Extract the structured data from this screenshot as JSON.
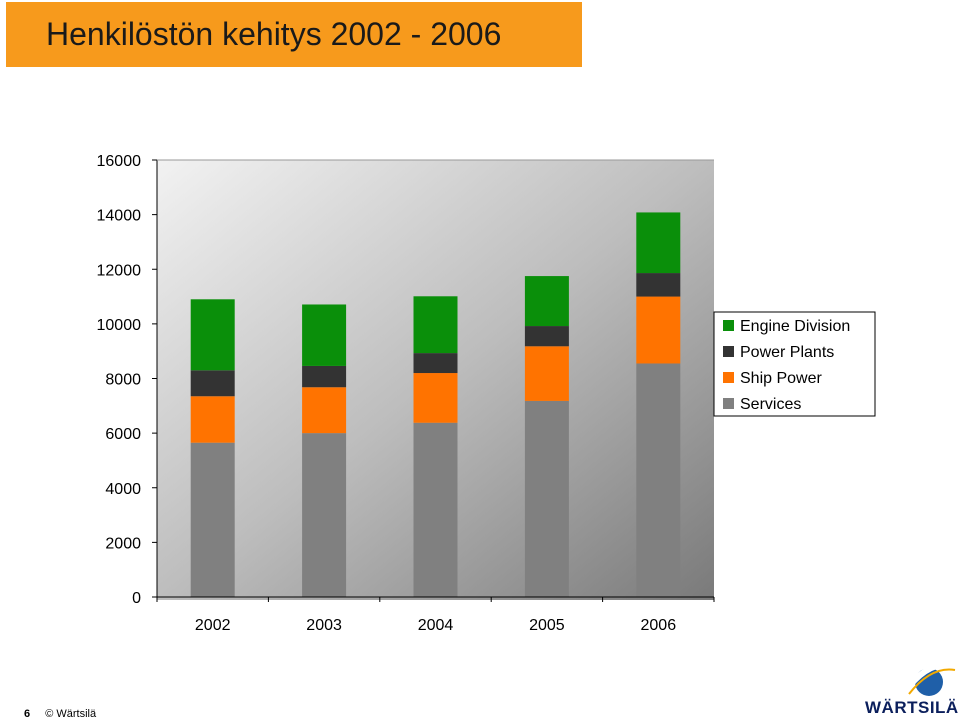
{
  "slide": {
    "title": "Henkilöstön kehitys 2002 - 2006",
    "page_number": "6",
    "copyright": "© Wärtsilä",
    "logo_text": "WÄRTSILÄ",
    "accent_color": "#f79a1c"
  },
  "chart_data": {
    "type": "bar",
    "stacked": true,
    "categories": [
      "2002",
      "2003",
      "2004",
      "2005",
      "2006"
    ],
    "ylim": [
      0,
      16000
    ],
    "yticks": [
      "0",
      "2000",
      "4000",
      "6000",
      "8000",
      "10000",
      "12000",
      "14000",
      "16000"
    ],
    "grid": false,
    "legend_position": "right",
    "series": [
      {
        "name": "Services",
        "color": "#808080",
        "values": [
          5650,
          6000,
          6380,
          7180,
          8550
        ]
      },
      {
        "name": "Ship Power",
        "color": "#ff7300",
        "values": [
          1700,
          1680,
          1820,
          2000,
          2450
        ]
      },
      {
        "name": "Power Plants",
        "color": "#333333",
        "values": [
          950,
          780,
          730,
          740,
          860
        ]
      },
      {
        "name": "Engine Division",
        "color": "#0a8f0a",
        "values": [
          2600,
          2250,
          2080,
          1830,
          2220
        ]
      }
    ]
  }
}
